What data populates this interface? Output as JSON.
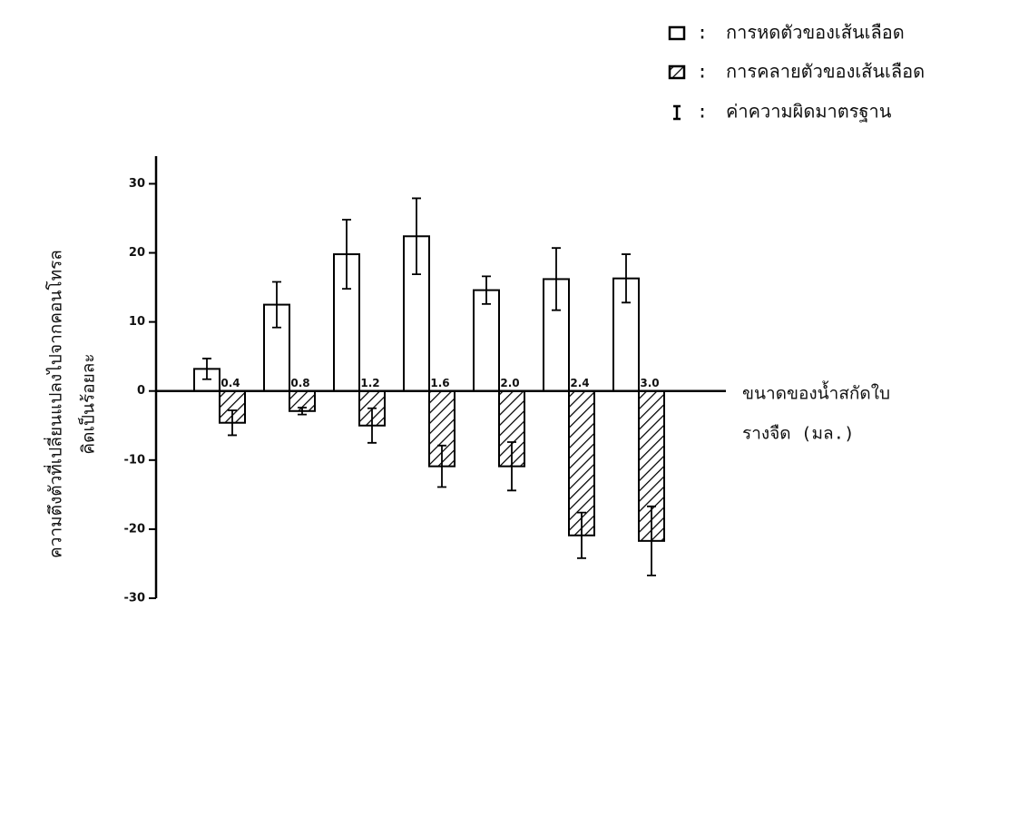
{
  "chart_data": {
    "type": "bar",
    "categories": [
      "0.4",
      "0.8",
      "1.2",
      "1.6",
      "2.0",
      "2.4",
      "3.0"
    ],
    "series": [
      {
        "name": "การหดตัวของเส้นเลือด",
        "color": "#ffffff",
        "values": [
          3.2,
          12.5,
          19.8,
          22.4,
          14.6,
          16.2,
          16.3
        ],
        "errors": [
          1.5,
          3.3,
          5.0,
          5.5,
          2.0,
          4.5,
          3.5
        ]
      },
      {
        "name": "การคลายตัวของเส้นเลือด",
        "color": "#000000",
        "values": [
          -4.6,
          -2.9,
          -5.0,
          -10.9,
          -10.9,
          -20.9,
          -21.7
        ],
        "errors": [
          1.8,
          0.5,
          2.5,
          3.0,
          3.5,
          3.3,
          5.0
        ]
      }
    ],
    "error_legend": "ค่าความผิดมาตรฐาน",
    "legend_separator": ":",
    "y_label": [
      "ความตึงตัวที่เปลี่ยนแปลงไปจากคอนโทรล",
      "คิดเป็นร้อยละ"
    ],
    "x_label": [
      "ขนาดของน้ำสกัดใบ",
      "รางจืด (มล.)"
    ],
    "ylim": [
      -30,
      34
    ],
    "yticks": [
      30,
      20,
      10,
      0,
      -10,
      -20,
      -30
    ],
    "legend": "top-right"
  }
}
